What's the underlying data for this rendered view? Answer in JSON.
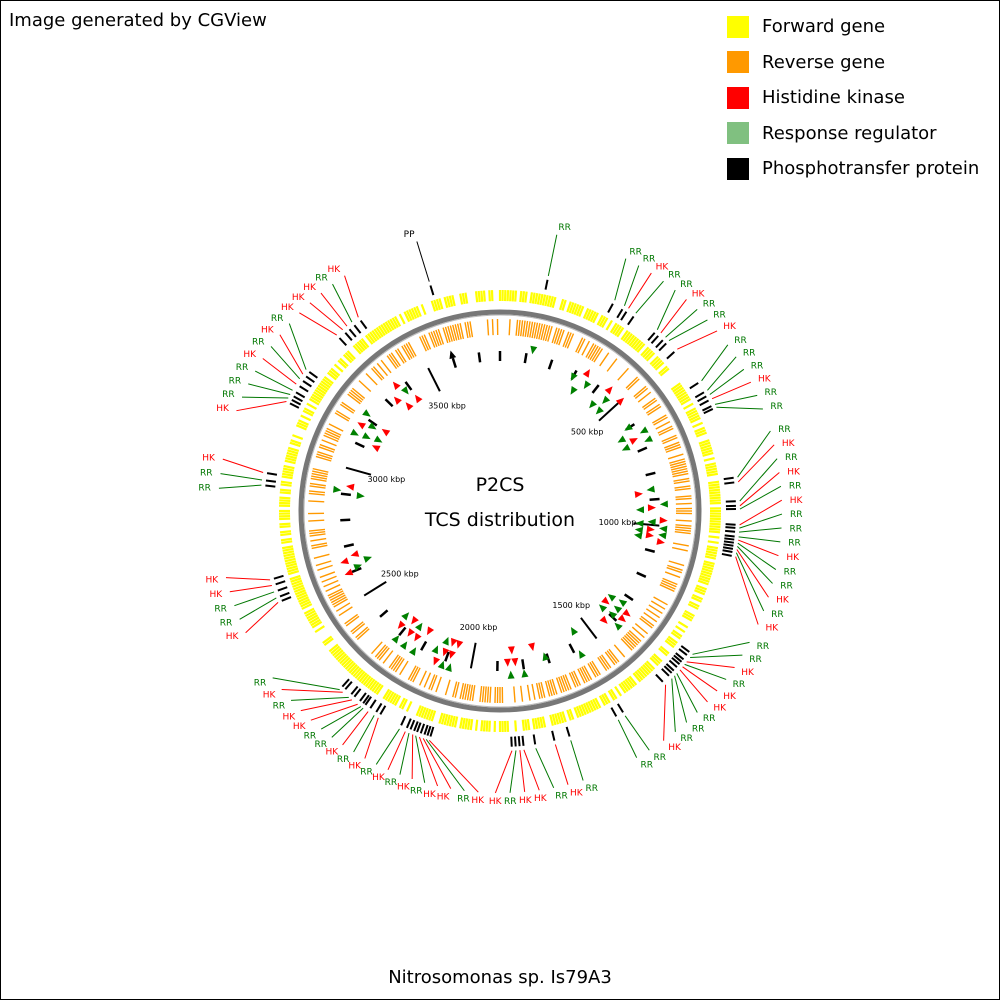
{
  "credit": "Image generated by CGView",
  "organism": "Nitrosomonas sp. Is79A3",
  "center": {
    "line1": "P2CS",
    "line2": "TCS distribution"
  },
  "legend": [
    {
      "label": "Forward gene",
      "color": "#ffff00"
    },
    {
      "label": "Reverse gene",
      "color": "#ff9900"
    },
    {
      "label": "Histidine kinase",
      "color": "#ff0000"
    },
    {
      "label": "Response regulator",
      "color": "#80c080"
    },
    {
      "label": "Phosphotransfer protein",
      "color": "#000000"
    }
  ],
  "colors": {
    "hk_text": "#ff0000",
    "rr_text": "#007700",
    "pp_text": "#000000",
    "hk_marker": "#ff0000",
    "rr_marker": "#008000",
    "backbone": "#777777"
  },
  "map": {
    "genome_kbp": 3780,
    "ticks": [
      {
        "label": "500 kbp",
        "kbp": 500
      },
      {
        "label": "1000 kbp",
        "kbp": 1000
      },
      {
        "label": "1500 kbp",
        "kbp": 1500
      },
      {
        "label": "2000 kbp",
        "kbp": 2000
      },
      {
        "label": "2500 kbp",
        "kbp": 2500
      },
      {
        "label": "3000 kbp",
        "kbp": 3000
      },
      {
        "label": "3500 kbp",
        "kbp": 3500
      }
    ],
    "features": [
      {
        "type": "RR",
        "kbp": 122
      },
      {
        "type": "RR",
        "kbp": 300
      },
      {
        "type": "RR",
        "kbp": 328
      },
      {
        "type": "HK",
        "kbp": 340
      },
      {
        "type": "RR",
        "kbp": 362
      },
      {
        "type": "RR",
        "kbp": 430
      },
      {
        "type": "HK",
        "kbp": 442
      },
      {
        "type": "RR",
        "kbp": 458
      },
      {
        "type": "RR",
        "kbp": 470
      },
      {
        "type": "HK",
        "kbp": 500
      },
      {
        "type": "RR",
        "kbp": 600
      },
      {
        "type": "RR",
        "kbp": 628
      },
      {
        "type": "RR",
        "kbp": 640
      },
      {
        "type": "HK",
        "kbp": 652
      },
      {
        "type": "RR",
        "kbp": 668
      },
      {
        "type": "RR",
        "kbp": 676
      },
      {
        "type": "RR",
        "kbp": 860
      },
      {
        "type": "HK",
        "kbp": 872
      },
      {
        "type": "RR",
        "kbp": 920
      },
      {
        "type": "HK",
        "kbp": 932
      },
      {
        "type": "RR",
        "kbp": 940
      },
      {
        "type": "HK",
        "kbp": 980
      },
      {
        "type": "RR",
        "kbp": 988
      },
      {
        "type": "RR",
        "kbp": 998
      },
      {
        "type": "RR",
        "kbp": 1010
      },
      {
        "type": "HK",
        "kbp": 1018
      },
      {
        "type": "RR",
        "kbp": 1026
      },
      {
        "type": "RR",
        "kbp": 1034
      },
      {
        "type": "HK",
        "kbp": 1042
      },
      {
        "type": "RR",
        "kbp": 1050
      },
      {
        "type": "HK",
        "kbp": 1060
      },
      {
        "type": "RR",
        "kbp": 1330
      },
      {
        "type": "RR",
        "kbp": 1340
      },
      {
        "type": "HK",
        "kbp": 1354
      },
      {
        "type": "RR",
        "kbp": 1362
      },
      {
        "type": "HK",
        "kbp": 1370
      },
      {
        "type": "HK",
        "kbp": 1380
      },
      {
        "type": "RR",
        "kbp": 1392
      },
      {
        "type": "RR",
        "kbp": 1400
      },
      {
        "type": "RR",
        "kbp": 1410
      },
      {
        "type": "HK",
        "kbp": 1432
      },
      {
        "type": "RR",
        "kbp": 1560
      },
      {
        "type": "RR",
        "kbp": 1580
      },
      {
        "type": "RR",
        "kbp": 1710
      },
      {
        "type": "HK",
        "kbp": 1750
      },
      {
        "type": "RR",
        "kbp": 1800
      },
      {
        "type": "HK",
        "kbp": 1830
      },
      {
        "type": "HK",
        "kbp": 1840
      },
      {
        "type": "RR",
        "kbp": 1850
      },
      {
        "type": "HK",
        "kbp": 1860
      },
      {
        "type": "HK",
        "kbp": 2070
      },
      {
        "type": "RR",
        "kbp": 2078
      },
      {
        "type": "HK",
        "kbp": 2086
      },
      {
        "type": "HK",
        "kbp": 2096
      },
      {
        "type": "RR",
        "kbp": 2106
      },
      {
        "type": "HK",
        "kbp": 2114
      },
      {
        "type": "RR",
        "kbp": 2124
      },
      {
        "type": "HK",
        "kbp": 2134
      },
      {
        "type": "RR",
        "kbp": 2150
      },
      {
        "type": "HK",
        "kbp": 2210
      },
      {
        "type": "RR",
        "kbp": 2222
      },
      {
        "type": "HK",
        "kbp": 2240
      },
      {
        "type": "RR",
        "kbp": 2255
      },
      {
        "type": "RR",
        "kbp": 2262
      },
      {
        "type": "HK",
        "kbp": 2272
      },
      {
        "type": "HK",
        "kbp": 2290
      },
      {
        "type": "RR",
        "kbp": 2300
      },
      {
        "type": "HK",
        "kbp": 2320
      },
      {
        "type": "RR",
        "kbp": 2330
      },
      {
        "type": "HK",
        "kbp": 2600
      },
      {
        "type": "RR",
        "kbp": 2612
      },
      {
        "type": "RR",
        "kbp": 2628
      },
      {
        "type": "HK",
        "kbp": 2645
      },
      {
        "type": "HK",
        "kbp": 2660
      },
      {
        "type": "RR",
        "kbp": 2900
      },
      {
        "type": "RR",
        "kbp": 2913
      },
      {
        "type": "HK",
        "kbp": 2932
      },
      {
        "type": "HK",
        "kbp": 3120
      },
      {
        "type": "RR",
        "kbp": 3130
      },
      {
        "type": "RR",
        "kbp": 3140
      },
      {
        "type": "RR",
        "kbp": 3152
      },
      {
        "type": "HK",
        "kbp": 3170
      },
      {
        "type": "RR",
        "kbp": 3186
      },
      {
        "type": "HK",
        "kbp": 3200
      },
      {
        "type": "RR",
        "kbp": 3214
      },
      {
        "type": "HK",
        "kbp": 3330
      },
      {
        "type": "HK",
        "kbp": 3350
      },
      {
        "type": "HK",
        "kbp": 3364
      },
      {
        "type": "RR",
        "kbp": 3380
      },
      {
        "type": "HK",
        "kbp": 3400
      },
      {
        "type": "PP",
        "kbp": 3600
      }
    ]
  }
}
